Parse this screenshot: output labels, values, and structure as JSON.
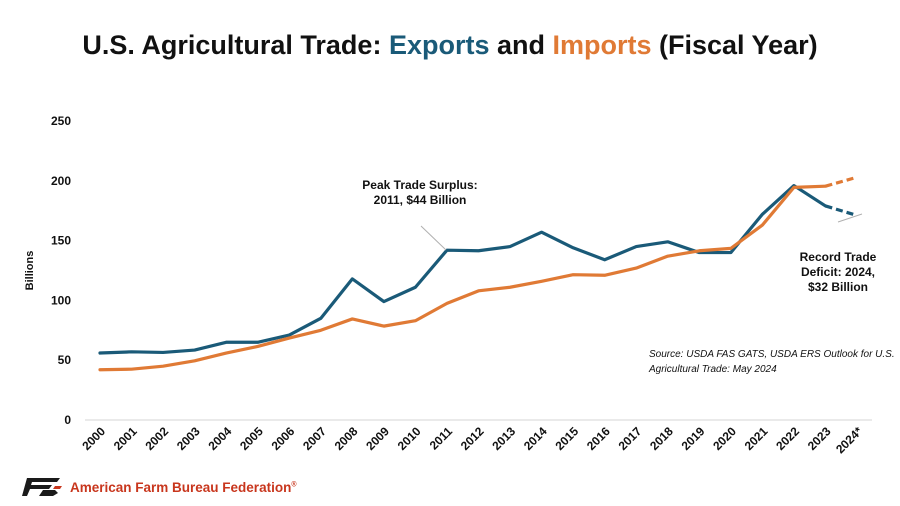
{
  "header": {
    "title_part1": "U.S. Agricultural Trade: ",
    "title_exports": "Exports",
    "title_and": " and ",
    "title_imports": "Imports",
    "title_part2": " (Fiscal Year)"
  },
  "footer": {
    "org_name": "American Farm Bureau Federation",
    "trademark": "®"
  },
  "colors": {
    "exports": "#1a5a78",
    "imports": "#e07a35"
  },
  "chart_data": {
    "type": "line",
    "title": "U.S. Agricultural Trade: Exports and Imports (Fiscal Year)",
    "ylabel": "Billions",
    "xlabel": "",
    "ylim": [
      0,
      250
    ],
    "yticks": [
      0,
      50,
      100,
      150,
      200,
      250
    ],
    "grid": false,
    "categories": [
      "2000",
      "2001",
      "2002",
      "2003",
      "2004",
      "2005",
      "2006",
      "2007",
      "2008",
      "2009",
      "2010",
      "2011",
      "2012",
      "2013",
      "2014",
      "2015",
      "2016",
      "2017",
      "2018",
      "2019",
      "2020",
      "2021",
      "2022",
      "2023",
      "2024*"
    ],
    "series": [
      {
        "name": "Exports",
        "color": "#1a5a78",
        "values": [
          56,
          57,
          56.5,
          58.5,
          65,
          65,
          71,
          85,
          118,
          99,
          111,
          142,
          141.5,
          145,
          157,
          144,
          134,
          145,
          149,
          140,
          140,
          172,
          196,
          179,
          171
        ],
        "projected_from_index": 23
      },
      {
        "name": "Imports",
        "color": "#e07a35",
        "values": [
          42,
          42.5,
          45,
          49.5,
          56,
          61.5,
          68.5,
          75,
          84.5,
          78.5,
          83,
          97.5,
          108,
          111,
          116,
          121.5,
          121,
          127,
          137,
          141.5,
          143.5,
          163,
          194.5,
          195.5,
          203
        ],
        "projected_from_index": 23
      }
    ],
    "annotations": [
      {
        "text_lines": [
          "Peak Trade Surplus:",
          "2011, $44 Billion"
        ],
        "points_to": "2011"
      },
      {
        "text_lines": [
          "Record Trade",
          "Deficit: 2024,",
          "$32 Billion"
        ],
        "points_to": "2024*"
      }
    ],
    "source": [
      "Source: USDA FAS GATS, USDA ERS Outlook for U.S.",
      "Agricultural Trade: May 2024"
    ]
  }
}
